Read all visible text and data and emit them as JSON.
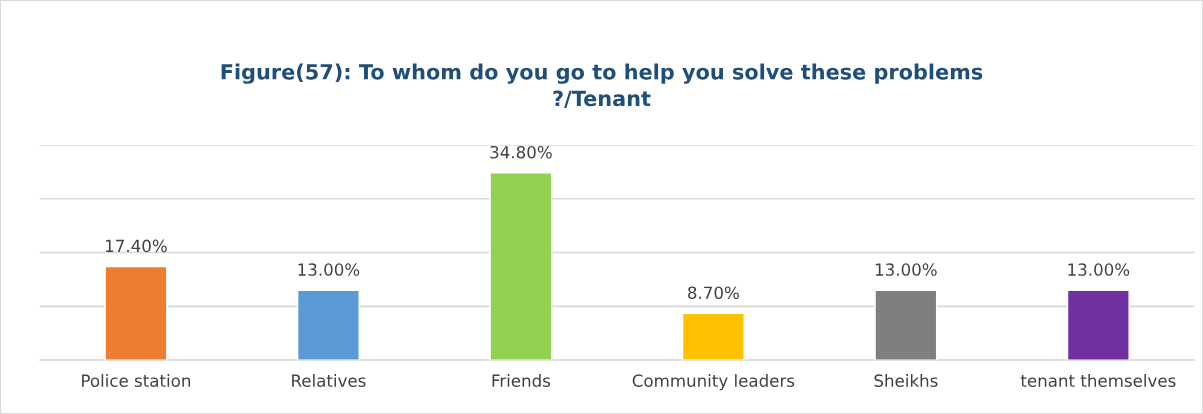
{
  "chart_data": {
    "type": "bar",
    "title": "Figure(57): To whom do you go to help you solve these problems\n?/Tenant",
    "categories": [
      "Police station",
      "Relatives",
      "Friends",
      "Community leaders",
      "Sheikhs",
      "tenant themselves"
    ],
    "values": [
      17.4,
      13.0,
      34.8,
      8.7,
      13.0,
      13.0
    ],
    "colors": [
      "#ed7d31",
      "#5b9bd5",
      "#92d050",
      "#ffc000",
      "#7f7f7f",
      "#7030a0"
    ],
    "value_labels": [
      "17.40%",
      "13.00%",
      "34.80%",
      "8.70%",
      "13.00%",
      "13.00%"
    ],
    "ylim": [
      0,
      40
    ],
    "yticks": [
      {
        "value": 0,
        "label": null
      },
      {
        "value": 10,
        "label": null
      },
      {
        "value": 20,
        "label": null
      },
      {
        "value": 30,
        "label": null
      },
      {
        "value": 40,
        "label": null
      }
    ],
    "grid": "y",
    "legend": false
  }
}
